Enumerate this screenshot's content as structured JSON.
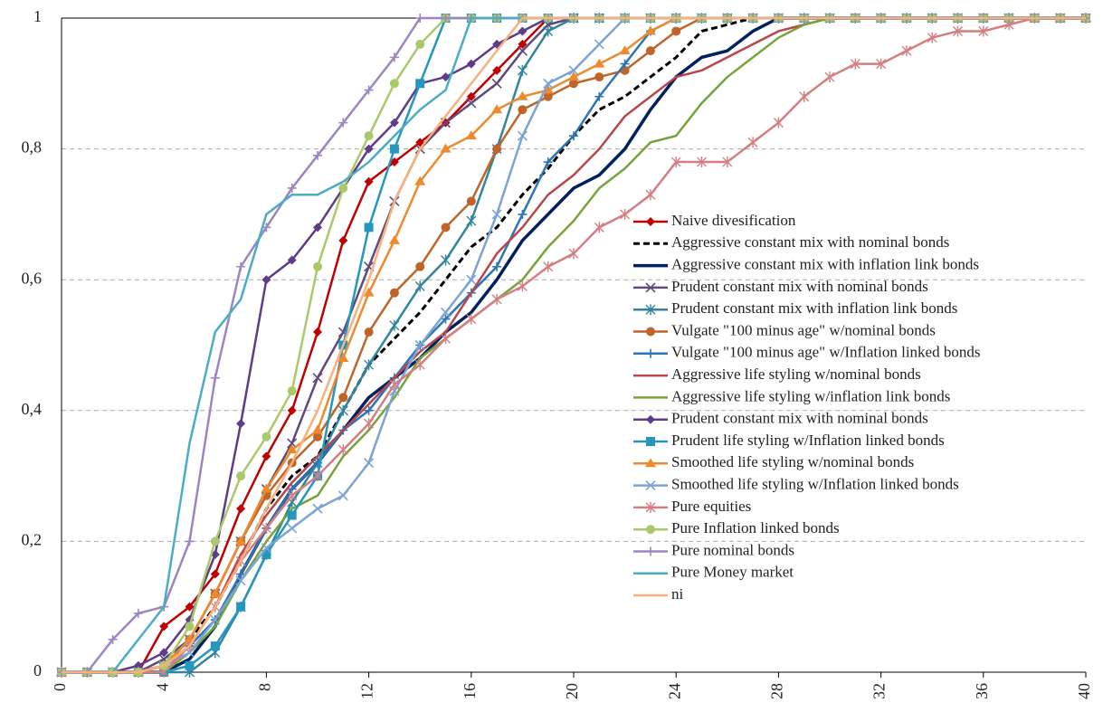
{
  "chart_data": {
    "type": "line",
    "x": [
      0,
      1,
      2,
      3,
      4,
      5,
      6,
      7,
      8,
      9,
      10,
      11,
      12,
      13,
      14,
      15,
      16,
      17,
      18,
      19,
      20,
      21,
      22,
      23,
      24,
      25,
      26,
      27,
      28,
      29,
      30,
      31,
      32,
      33,
      34,
      35,
      36,
      37,
      38,
      39,
      40
    ],
    "xlim": [
      0,
      40
    ],
    "xticks": [
      0,
      4,
      8,
      12,
      16,
      20,
      24,
      28,
      32,
      36,
      40
    ],
    "ylim": [
      0,
      1
    ],
    "yticks": [
      0,
      {
        "value": 0.2,
        "label": "0,2"
      },
      {
        "value": 0.4,
        "label": "0,4"
      },
      {
        "value": 0.6,
        "label": "0,6"
      },
      {
        "value": 0.8,
        "label": "0,8"
      },
      1
    ],
    "grid": true,
    "legend": "right",
    "series": [
      {
        "name": "Naive divesification",
        "color": "#c00000",
        "marker": "diamond",
        "values": [
          0,
          0,
          0,
          0,
          0.07,
          0.1,
          0.15,
          0.25,
          0.33,
          0.4,
          0.52,
          0.66,
          0.75,
          0.78,
          0.81,
          0.84,
          0.88,
          0.92,
          0.96,
          1,
          1,
          1,
          1,
          1,
          1,
          1,
          1,
          1,
          1,
          1,
          1,
          1,
          1,
          1,
          1,
          1,
          1,
          1,
          1,
          1,
          1
        ]
      },
      {
        "name": "Aggressive constant mix with nominal bonds",
        "color": "#000000",
        "marker": "none",
        "dash": true,
        "values": [
          0,
          0,
          0,
          0,
          0.01,
          0.05,
          0.1,
          0.17,
          0.25,
          0.3,
          0.33,
          0.4,
          0.47,
          0.51,
          0.55,
          0.6,
          0.65,
          0.68,
          0.73,
          0.77,
          0.82,
          0.86,
          0.88,
          0.91,
          0.94,
          0.98,
          0.99,
          1,
          1,
          1,
          1,
          1,
          1,
          1,
          1,
          1,
          1,
          1,
          1,
          1,
          1
        ]
      },
      {
        "name": "Aggressive constant mix with inflation link bonds",
        "color": "#002060",
        "marker": "none",
        "values": [
          0,
          0,
          0,
          0,
          0,
          0.02,
          0.07,
          0.15,
          0.22,
          0.28,
          0.32,
          0.37,
          0.42,
          0.45,
          0.48,
          0.52,
          0.55,
          0.6,
          0.66,
          0.7,
          0.74,
          0.76,
          0.8,
          0.86,
          0.91,
          0.94,
          0.95,
          0.98,
          1,
          1,
          1,
          1,
          1,
          1,
          1,
          1,
          1,
          1,
          1,
          1,
          1
        ]
      },
      {
        "name": "Prudent constant mix with nominal bonds",
        "color": "#604a7b",
        "marker": "x",
        "values": [
          0,
          0,
          0,
          0,
          0.02,
          0.05,
          0.12,
          0.2,
          0.28,
          0.35,
          0.45,
          0.52,
          0.62,
          0.72,
          0.8,
          0.84,
          0.87,
          0.9,
          0.95,
          0.99,
          1,
          1,
          1,
          1,
          1,
          1,
          1,
          1,
          1,
          1,
          1,
          1,
          1,
          1,
          1,
          1,
          1,
          1,
          1,
          1,
          1
        ]
      },
      {
        "name": "Prudent constant mix with inflation link bonds",
        "color": "#31859c",
        "marker": "star",
        "values": [
          0,
          0,
          0,
          0,
          0,
          0,
          0.03,
          0.1,
          0.18,
          0.26,
          0.32,
          0.4,
          0.47,
          0.53,
          0.59,
          0.63,
          0.69,
          0.8,
          0.92,
          0.98,
          1,
          1,
          1,
          1,
          1,
          1,
          1,
          1,
          1,
          1,
          1,
          1,
          1,
          1,
          1,
          1,
          1,
          1,
          1,
          1,
          1
        ]
      },
      {
        "name": "Vulgate \"100 minus age\" w/nominal bonds",
        "color": "#c0652a",
        "marker": "circle",
        "values": [
          0,
          0,
          0,
          0,
          0.01,
          0.05,
          0.12,
          0.2,
          0.27,
          0.32,
          0.36,
          0.42,
          0.52,
          0.58,
          0.62,
          0.68,
          0.72,
          0.8,
          0.86,
          0.88,
          0.9,
          0.91,
          0.92,
          0.95,
          0.98,
          1,
          1,
          1,
          1,
          1,
          1,
          1,
          1,
          1,
          1,
          1,
          1,
          1,
          1,
          1,
          1
        ]
      },
      {
        "name": "Vulgate \"100 minus age\" w/Inflation linked bonds",
        "color": "#2e75b6",
        "marker": "plus",
        "values": [
          0,
          0,
          0,
          0,
          0.01,
          0.04,
          0.08,
          0.15,
          0.22,
          0.28,
          0.32,
          0.37,
          0.4,
          0.45,
          0.5,
          0.54,
          0.58,
          0.62,
          0.7,
          0.78,
          0.82,
          0.88,
          0.93,
          0.98,
          1,
          1,
          1,
          1,
          1,
          1,
          1,
          1,
          1,
          1,
          1,
          1,
          1,
          1,
          1,
          1,
          1
        ]
      },
      {
        "name": "Aggressive life styling w/nominal bonds",
        "color": "#b8464b",
        "marker": "none",
        "values": [
          0,
          0,
          0,
          0,
          0.01,
          0.04,
          0.1,
          0.18,
          0.24,
          0.29,
          0.33,
          0.37,
          0.41,
          0.45,
          0.49,
          0.52,
          0.58,
          0.64,
          0.68,
          0.73,
          0.76,
          0.8,
          0.85,
          0.88,
          0.91,
          0.92,
          0.94,
          0.96,
          0.98,
          0.99,
          1,
          1,
          1,
          1,
          1,
          1,
          1,
          1,
          1,
          1,
          1
        ]
      },
      {
        "name": "Aggressive life styling w/inflation link bonds",
        "color": "#77a33a",
        "marker": "none",
        "values": [
          0,
          0,
          0,
          0,
          0,
          0.03,
          0.07,
          0.14,
          0.2,
          0.25,
          0.27,
          0.33,
          0.37,
          0.42,
          0.48,
          0.51,
          0.54,
          0.57,
          0.6,
          0.65,
          0.69,
          0.74,
          0.77,
          0.81,
          0.82,
          0.87,
          0.91,
          0.94,
          0.97,
          0.99,
          1,
          1,
          1,
          1,
          1,
          1,
          1,
          1,
          1,
          1,
          1
        ]
      },
      {
        "name": "Prudent constant mix with nominal bonds",
        "color": "#5f3c87",
        "marker": "diamond",
        "values": [
          0,
          0,
          0,
          0.01,
          0.03,
          0.08,
          0.18,
          0.38,
          0.6,
          0.63,
          0.68,
          0.74,
          0.8,
          0.84,
          0.9,
          0.91,
          0.93,
          0.96,
          0.98,
          1,
          1,
          1,
          1,
          1,
          1,
          1,
          1,
          1,
          1,
          1,
          1,
          1,
          1,
          1,
          1,
          1,
          1,
          1,
          1,
          1,
          1
        ]
      },
      {
        "name": "Prudent life styling w/Inflation linked bonds",
        "color": "#2596be",
        "marker": "square",
        "values": [
          0,
          0,
          0,
          0,
          0,
          0.01,
          0.04,
          0.1,
          0.18,
          0.24,
          0.3,
          0.5,
          0.68,
          0.8,
          0.9,
          1,
          1,
          1,
          1,
          1,
          1,
          1,
          1,
          1,
          1,
          1,
          1,
          1,
          1,
          1,
          1,
          1,
          1,
          1,
          1,
          1,
          1,
          1,
          1,
          1,
          1
        ]
      },
      {
        "name": "Smoothed life styling w/nominal bonds",
        "color": "#ed8a2d",
        "marker": "triangle",
        "values": [
          0,
          0,
          0,
          0,
          0.01,
          0.05,
          0.12,
          0.2,
          0.28,
          0.34,
          0.37,
          0.48,
          0.58,
          0.66,
          0.75,
          0.8,
          0.82,
          0.86,
          0.88,
          0.89,
          0.91,
          0.93,
          0.95,
          0.98,
          1,
          1,
          1,
          1,
          1,
          1,
          1,
          1,
          1,
          1,
          1,
          1,
          1,
          1,
          1,
          1,
          1
        ]
      },
      {
        "name": "Smoothed life styling w/Inflation linked bonds",
        "color": "#7ba4d4",
        "marker": "x",
        "values": [
          0,
          0,
          0,
          0,
          0.01,
          0.03,
          0.08,
          0.14,
          0.19,
          0.22,
          0.25,
          0.27,
          0.32,
          0.43,
          0.5,
          0.55,
          0.6,
          0.7,
          0.82,
          0.9,
          0.92,
          0.96,
          1,
          1,
          1,
          1,
          1,
          1,
          1,
          1,
          1,
          1,
          1,
          1,
          1,
          1,
          1,
          1,
          1,
          1,
          1
        ]
      },
      {
        "name": "Pure equities",
        "color": "#d47e82",
        "marker": "star",
        "values": [
          0,
          0,
          0,
          0,
          0,
          0.04,
          0.1,
          0.17,
          0.22,
          0.27,
          0.3,
          0.34,
          0.38,
          0.44,
          0.47,
          0.51,
          0.54,
          0.57,
          0.59,
          0.62,
          0.64,
          0.68,
          0.7,
          0.73,
          0.78,
          0.78,
          0.78,
          0.81,
          0.84,
          0.88,
          0.91,
          0.93,
          0.93,
          0.95,
          0.97,
          0.98,
          0.98,
          0.99,
          1,
          1,
          1
        ]
      },
      {
        "name": "Pure Inflation linked bonds",
        "color": "#a9c96a",
        "marker": "circle",
        "values": [
          0,
          0,
          0,
          0,
          0.01,
          0.07,
          0.2,
          0.3,
          0.36,
          0.43,
          0.62,
          0.74,
          0.82,
          0.9,
          0.96,
          1,
          1,
          1,
          1,
          1,
          1,
          1,
          1,
          1,
          1,
          1,
          1,
          1,
          1,
          1,
          1,
          1,
          1,
          1,
          1,
          1,
          1,
          1,
          1,
          1,
          1
        ]
      },
      {
        "name": "Pure nominal bonds",
        "color": "#9d85c0",
        "marker": "plus",
        "values": [
          0,
          0,
          0.05,
          0.09,
          0.1,
          0.2,
          0.45,
          0.62,
          0.68,
          0.74,
          0.79,
          0.84,
          0.89,
          0.94,
          1,
          1,
          1,
          1,
          1,
          1,
          1,
          1,
          1,
          1,
          1,
          1,
          1,
          1,
          1,
          1,
          1,
          1,
          1,
          1,
          1,
          1,
          1,
          1,
          1,
          1,
          1
        ]
      },
      {
        "name": "Pure Money market",
        "color": "#4bacc6",
        "marker": "none",
        "values": [
          0,
          0,
          0,
          0.05,
          0.1,
          0.35,
          0.52,
          0.57,
          0.7,
          0.73,
          0.73,
          0.75,
          0.78,
          0.82,
          0.86,
          0.89,
          1,
          1,
          1,
          1,
          1,
          1,
          1,
          1,
          1,
          1,
          1,
          1,
          1,
          1,
          1,
          1,
          1,
          1,
          1,
          1,
          1,
          1,
          1,
          1,
          1
        ]
      },
      {
        "name": "ni",
        "color": "#fab07a",
        "marker": "none",
        "values": [
          0,
          0,
          0,
          0,
          0.01,
          0.04,
          0.1,
          0.17,
          0.25,
          0.32,
          0.4,
          0.5,
          0.6,
          0.72,
          0.8,
          0.85,
          0.9,
          0.95,
          1,
          1,
          1,
          1,
          1,
          1,
          1,
          1,
          1,
          1,
          1,
          1,
          1,
          1,
          1,
          1,
          1,
          1,
          1,
          1,
          1,
          1,
          1
        ]
      }
    ]
  }
}
